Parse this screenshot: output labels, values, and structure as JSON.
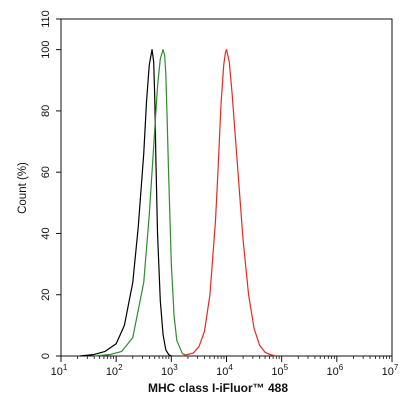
{
  "chart_data": {
    "type": "line",
    "title": "",
    "xlabel": "MHC class I-iFluor™ 488",
    "ylabel": "Count  (%)",
    "xscale": "log",
    "xlim": [
      10,
      10000000
    ],
    "ylim": [
      0,
      110
    ],
    "x_ticks": [
      {
        "value": 10,
        "base": "10",
        "exp": "1"
      },
      {
        "value": 100,
        "base": "10",
        "exp": "2"
      },
      {
        "value": 1000,
        "base": "10",
        "exp": "3"
      },
      {
        "value": 10000,
        "base": "10",
        "exp": "4"
      },
      {
        "value": 100000,
        "base": "10",
        "exp": "5"
      },
      {
        "value": 1000000,
        "base": "10",
        "exp": "6"
      },
      {
        "value": 10000000,
        "base": "10",
        "exp": "7"
      }
    ],
    "y_ticks": [
      "0",
      "20",
      "40",
      "60",
      "80",
      "100",
      "110"
    ],
    "grid": false,
    "legend": "none",
    "series": [
      {
        "color": "#000000",
        "x": [
          22,
          40,
          63,
          100,
          141,
          200,
          251,
          316,
          355,
          398,
          447,
          479,
          501,
          525,
          562,
          631,
          708,
          794,
          891,
          1000
        ],
        "y": [
          0,
          0.5,
          1.5,
          4,
          10,
          24,
          42,
          66,
          83,
          95,
          100,
          96,
          84,
          64,
          40,
          18,
          7,
          2,
          0.5,
          0
        ]
      },
      {
        "color": "#2e8b2e",
        "x": [
          40,
          79,
          126,
          200,
          316,
          398,
          501,
          562,
          631,
          708,
          759,
          794,
          832,
          891,
          1000,
          1122,
          1259,
          1585,
          2000
        ],
        "y": [
          0,
          0.5,
          1.5,
          6,
          24,
          46,
          74,
          88,
          97,
          100,
          98,
          92,
          80,
          60,
          30,
          13,
          5,
          0.8,
          0
        ]
      },
      {
        "color": "#e8291f",
        "x": [
          1585,
          2512,
          3162,
          3981,
          5012,
          6310,
          7079,
          7943,
          8913,
          9550,
          10000,
          11220,
          12589,
          15849,
          19953,
          25119,
          31623,
          39811,
          50119,
          63096,
          79433
        ],
        "y": [
          0,
          1,
          3,
          8,
          20,
          44,
          62,
          82,
          95,
          99,
          100,
          96,
          86,
          62,
          38,
          20,
          9,
          3.5,
          1.2,
          0.4,
          0
        ]
      }
    ]
  }
}
